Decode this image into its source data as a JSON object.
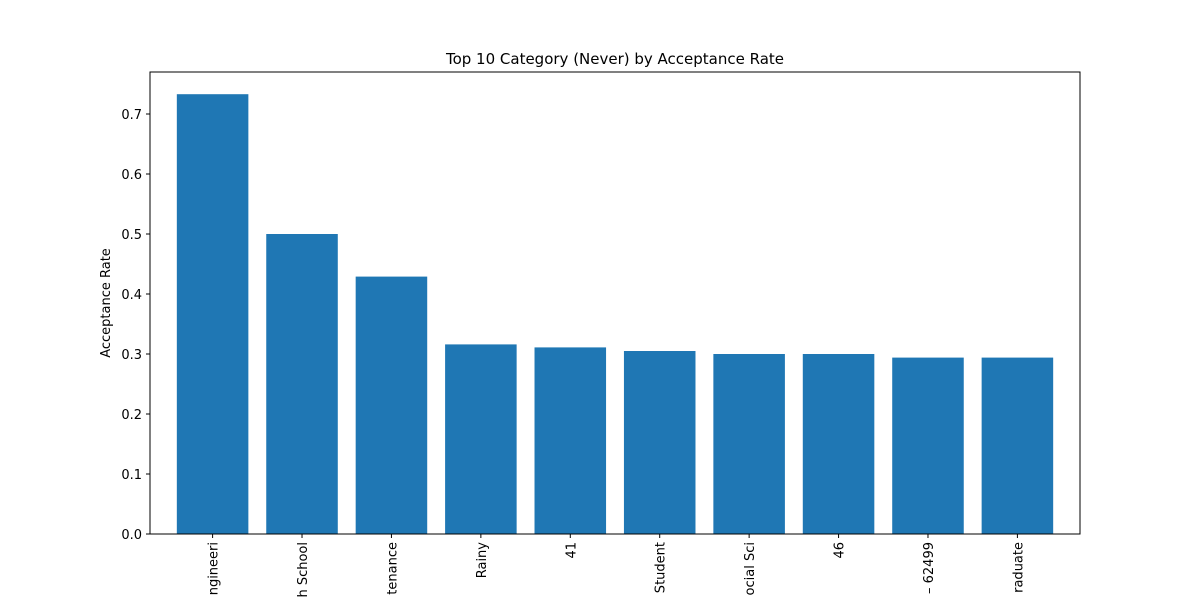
{
  "chart_data": {
    "type": "bar",
    "title": "Top 10 Category (Never) by Acceptance Rate",
    "xlabel": "",
    "ylabel": "Acceptance Rate",
    "categories": [
      "ngineeri",
      "h School",
      "tenance",
      "Rainy",
      "41",
      "Student",
      "ocial Sci",
      "46",
      "– 62499",
      "raduate"
    ],
    "values": [
      0.733,
      0.5,
      0.429,
      0.316,
      0.311,
      0.305,
      0.3,
      0.3,
      0.294,
      0.294
    ],
    "ylim": [
      0,
      0.77
    ],
    "yticks": [
      0.0,
      0.1,
      0.2,
      0.3,
      0.4,
      0.5,
      0.6,
      0.7
    ],
    "grid": false,
    "bar_color": "#1f77b4"
  }
}
